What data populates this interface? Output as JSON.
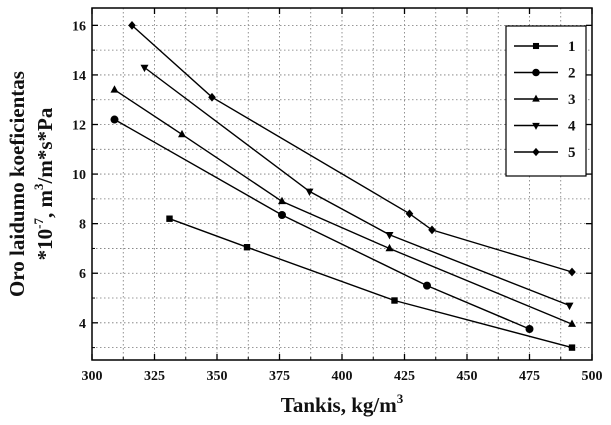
{
  "chart_data": {
    "type": "line",
    "xlabel_prefix": "Tankis, kg/m",
    "xlabel_sup": "3",
    "ylabel_line1": "Oro laidumo koeficientas",
    "ylabel_line2": {
      "a": "*10",
      "a_sup": "-7",
      "b": ", m",
      "b_sup": "3",
      "c": "/m*s*Pa"
    },
    "xlim": [
      300,
      500
    ],
    "ylim": [
      2.5,
      16.7
    ],
    "xticks": [
      300,
      325,
      350,
      375,
      400,
      425,
      450,
      475,
      500
    ],
    "yticks": [
      4,
      6,
      8,
      10,
      12,
      14,
      16
    ],
    "grid": true,
    "legend_position": "top-right",
    "series": [
      {
        "name": "1",
        "marker": "square",
        "x": [
          331,
          362,
          421,
          492
        ],
        "y": [
          8.2,
          7.05,
          4.9,
          3.0
        ]
      },
      {
        "name": "2",
        "marker": "circle",
        "x": [
          309,
          376,
          434,
          475
        ],
        "y": [
          12.2,
          8.35,
          5.5,
          3.75
        ]
      },
      {
        "name": "3",
        "marker": "triangle-up",
        "x": [
          309,
          336,
          376,
          419,
          492
        ],
        "y": [
          13.4,
          11.6,
          8.9,
          7.0,
          3.95
        ]
      },
      {
        "name": "4",
        "marker": "triangle-down",
        "x": [
          321,
          387,
          419,
          491
        ],
        "y": [
          14.3,
          9.3,
          7.55,
          4.7
        ]
      },
      {
        "name": "5",
        "marker": "diamond",
        "x": [
          316,
          348,
          427,
          436,
          492
        ],
        "y": [
          16.0,
          13.1,
          8.4,
          7.75,
          6.05
        ]
      }
    ]
  }
}
